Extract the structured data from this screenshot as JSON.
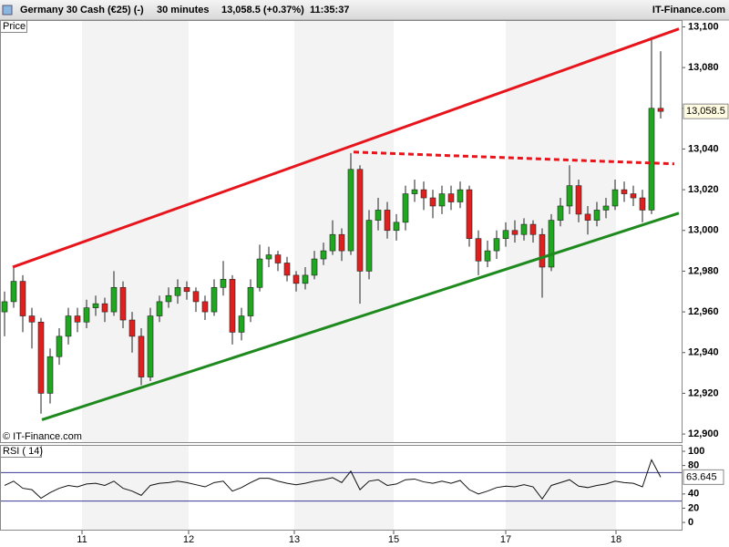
{
  "header": {
    "instrument": "Germany 30 Cash (€25) (-)",
    "interval": "30 minutes",
    "change": "13,058.5 (+0.37%)",
    "time": "11:35:37",
    "source": "IT-Finance.com"
  },
  "chart_data": [
    {
      "type": "candlestick",
      "label": "Price",
      "watermark": "© IT-Finance.com",
      "up_color": "#1fa81f",
      "down_color": "#e0201f",
      "xlim": [
        -0.5,
        74.3
      ],
      "xticks": [
        {
          "value": 8.5,
          "label": "11"
        },
        {
          "value": 20.2,
          "label": "12"
        },
        {
          "value": 31.8,
          "label": "13"
        },
        {
          "value": 42.7,
          "label": "15"
        },
        {
          "value": 55,
          "label": "17"
        },
        {
          "value": 67.1,
          "label": "18"
        }
      ],
      "ylim": [
        12896,
        13102
      ],
      "yticks": [
        {
          "value": 12900,
          "label": "12,900"
        },
        {
          "value": 12920,
          "label": "12,920"
        },
        {
          "value": 12940,
          "label": "12,940"
        },
        {
          "value": 12960,
          "label": "12,960"
        },
        {
          "value": 12980,
          "label": "12,980"
        },
        {
          "value": 13000,
          "label": "13,000"
        },
        {
          "value": 13020,
          "label": "13,020"
        },
        {
          "value": 13040,
          "label": "13,040"
        },
        {
          "value": 13060,
          "label": "13,060"
        },
        {
          "value": 13080,
          "label": "13,080"
        },
        {
          "value": 13100,
          "label": "13,100"
        }
      ],
      "last_price": {
        "value": 13058.5,
        "label": "13,058.5"
      },
      "trendlines": [
        {
          "color": "#e8141b",
          "dashed": false,
          "points": [
            [
              0.9,
              12982
            ],
            [
              74,
              13099
            ]
          ]
        },
        {
          "color": "#1e8a1e",
          "dashed": false,
          "points": [
            [
              4.1,
              12907
            ],
            [
              74,
              13008.5
            ]
          ]
        },
        {
          "color": "#e8141b",
          "dashed": true,
          "points": [
            [
              38.3,
              13038.5
            ],
            [
              73.5,
              13032.7
            ]
          ]
        }
      ],
      "ohlc": [
        [
          12960,
          12970,
          12948,
          12965
        ],
        [
          12965,
          12982,
          12962,
          12975
        ],
        [
          12975,
          12978,
          12950,
          12958
        ],
        [
          12958,
          12962,
          12942,
          12955
        ],
        [
          12955,
          12957,
          12910,
          12920
        ],
        [
          12920,
          12942,
          12915,
          12938
        ],
        [
          12938,
          12952,
          12934,
          12948
        ],
        [
          12948,
          12962,
          12944,
          12958
        ],
        [
          12958,
          12962,
          12950,
          12955
        ],
        [
          12955,
          12966,
          12952,
          12962
        ],
        [
          12962,
          12968,
          12958,
          12964
        ],
        [
          12964,
          12967,
          12955,
          12960
        ],
        [
          12960,
          12980,
          12958,
          12972
        ],
        [
          12972,
          12975,
          12952,
          12956
        ],
        [
          12956,
          12960,
          12940,
          12948
        ],
        [
          12948,
          12952,
          12924,
          12928
        ],
        [
          12928,
          12962,
          12926,
          12958
        ],
        [
          12958,
          12968,
          12955,
          12965
        ],
        [
          12965,
          12972,
          12962,
          12968
        ],
        [
          12968,
          12976,
          12964,
          12972
        ],
        [
          12972,
          12975,
          12966,
          12970
        ],
        [
          12970,
          12972,
          12960,
          12965
        ],
        [
          12965,
          12968,
          12956,
          12960
        ],
        [
          12960,
          12976,
          12958,
          12972
        ],
        [
          12972,
          12985,
          12968,
          12976
        ],
        [
          12976,
          12978,
          12944,
          12950
        ],
        [
          12950,
          12962,
          12946,
          12958
        ],
        [
          12958,
          12976,
          12955,
          12972
        ],
        [
          12972,
          12993,
          12970,
          12986
        ],
        [
          12986,
          12992,
          12982,
          12988
        ],
        [
          12988,
          12990,
          12980,
          12984
        ],
        [
          12984,
          12987,
          12975,
          12978
        ],
        [
          12978,
          12980,
          12970,
          12974
        ],
        [
          12974,
          12982,
          12971,
          12978
        ],
        [
          12978,
          12990,
          12976,
          12986
        ],
        [
          12986,
          12994,
          12983,
          12990
        ],
        [
          12990,
          13005,
          12988,
          12998
        ],
        [
          12998,
          13001,
          12985,
          12990
        ],
        [
          12990,
          13038,
          12988,
          13030
        ],
        [
          13030,
          13032,
          12964,
          12980
        ],
        [
          12980,
          13010,
          12976,
          13005
        ],
        [
          13005,
          13016,
          13000,
          13010
        ],
        [
          13010,
          13014,
          12996,
          13000
        ],
        [
          13000,
          13008,
          12995,
          13004
        ],
        [
          13004,
          13022,
          13000,
          13018
        ],
        [
          13018,
          13025,
          13014,
          13020
        ],
        [
          13020,
          13024,
          13010,
          13016
        ],
        [
          13016,
          13020,
          13006,
          13012
        ],
        [
          13012,
          13022,
          13008,
          13018
        ],
        [
          13018,
          13022,
          13010,
          13014
        ],
        [
          13014,
          13024,
          13011,
          13020
        ],
        [
          13020,
          13022,
          12992,
          12996
        ],
        [
          12996,
          13000,
          12978,
          12985
        ],
        [
          12985,
          12995,
          12982,
          12990
        ],
        [
          12990,
          13000,
          12986,
          12996
        ],
        [
          12996,
          13004,
          12992,
          13000
        ],
        [
          13000,
          13005,
          12994,
          12998
        ],
        [
          12998,
          13006,
          12995,
          13003
        ],
        [
          13003,
          13005,
          12994,
          12998
        ],
        [
          12998,
          13001,
          12967,
          12982
        ],
        [
          12982,
          13008,
          12980,
          13005
        ],
        [
          13005,
          13016,
          13002,
          13012
        ],
        [
          13012,
          13032,
          13008,
          13022
        ],
        [
          13022,
          13025,
          13004,
          13008
        ],
        [
          13008,
          13012,
          12998,
          13005
        ],
        [
          13005,
          13014,
          13002,
          13010
        ],
        [
          13010,
          13016,
          13006,
          13012
        ],
        [
          13012,
          13025,
          13010,
          13020
        ],
        [
          13020,
          13024,
          13014,
          13018
        ],
        [
          13018,
          13022,
          13012,
          13016
        ],
        [
          13016,
          13020,
          13004,
          13010
        ],
        [
          13010,
          13095,
          13008,
          13060
        ],
        [
          13060,
          13088,
          13055,
          13058.5
        ]
      ]
    },
    {
      "type": "line",
      "label": "RSI ( 14)",
      "color": "#111111",
      "level_color": "#3b3b9a",
      "ylim": [
        -11.5,
        109
      ],
      "yticks": [
        0,
        20,
        40,
        80,
        100
      ],
      "levels": [
        70,
        30
      ],
      "values": [
        52,
        58,
        48,
        46,
        34,
        42,
        48,
        52,
        50,
        54,
        55,
        52,
        58,
        48,
        44,
        38,
        52,
        55,
        56,
        58,
        56,
        53,
        50,
        56,
        58,
        44,
        49,
        56,
        62,
        62,
        58,
        55,
        53,
        55,
        58,
        60,
        63,
        56,
        72,
        46,
        58,
        60,
        52,
        54,
        60,
        61,
        57,
        55,
        58,
        55,
        59,
        46,
        40,
        44,
        49,
        51,
        50,
        53,
        50,
        33,
        52,
        56,
        60,
        51,
        49,
        52,
        54,
        58,
        56,
        55,
        50,
        88,
        63.645
      ]
    }
  ]
}
